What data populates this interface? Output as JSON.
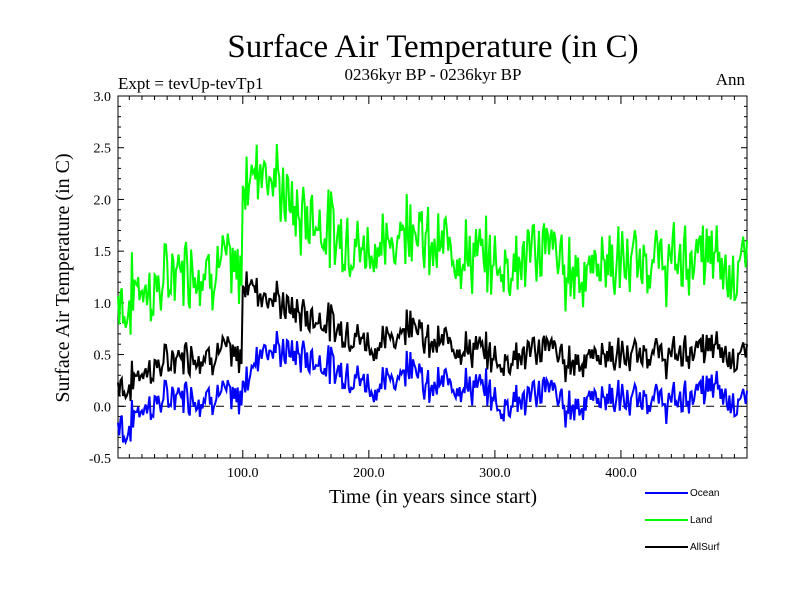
{
  "chart_data": {
    "type": "line",
    "title": "Surface Air Temperature (in C)",
    "subtitle": "0236kyr BP - 0236kyr BP",
    "expt_label": "Expt = tevUp-tevTp1",
    "season_label": "Ann",
    "xlabel": "Time (in years since start)",
    "ylabel": "Surface Air Temperature (in C)",
    "xlim": [
      1,
      500
    ],
    "ylim": [
      -0.5,
      3.0
    ],
    "x_ticks": [
      100,
      200,
      300,
      400
    ],
    "x_tick_labels": [
      "100.0",
      "200.0",
      "300.0",
      "400.0"
    ],
    "y_ticks": [
      -0.5,
      0.0,
      0.5,
      1.0,
      1.5,
      2.0,
      2.5,
      3.0
    ],
    "y_tick_labels": [
      "-0.5",
      "0.0",
      "0.5",
      "1.0",
      "1.5",
      "2.0",
      "2.5",
      "3.0"
    ],
    "zero_line": 0.0,
    "x_step": 10,
    "series": [
      {
        "name": "Ocean",
        "color": "#0000ff",
        "values": [
          -0.35,
          -0.05,
          0.0,
          0.05,
          0.1,
          0.12,
          0.08,
          0.1,
          0.12,
          0.05,
          0.28,
          0.6,
          0.55,
          0.52,
          0.5,
          0.45,
          0.43,
          0.35,
          0.3,
          0.25,
          0.15,
          0.25,
          0.3,
          0.5,
          0.15,
          0.2,
          0.25,
          0.2,
          0.18,
          0.15,
          -0.05,
          0.1,
          0.05,
          0.15,
          0.2,
          -0.02,
          0.02,
          0.05,
          0.1,
          0.08,
          0.05,
          0.05,
          0.1,
          0.02,
          0.05,
          0.12,
          0.15,
          0.2,
          0.08,
          0.05
        ]
      },
      {
        "name": "Land",
        "color": "#00ff00",
        "values": [
          0.8,
          1.2,
          1.1,
          1.15,
          1.3,
          1.35,
          1.35,
          1.3,
          1.4,
          1.25,
          2.2,
          2.4,
          2.2,
          2.0,
          1.8,
          1.85,
          1.75,
          1.65,
          1.6,
          1.5,
          1.55,
          1.5,
          1.7,
          1.85,
          1.55,
          1.5,
          1.6,
          1.45,
          1.45,
          1.4,
          1.35,
          1.4,
          1.45,
          1.5,
          1.6,
          1.3,
          1.35,
          1.25,
          1.45,
          1.35,
          1.4,
          1.35,
          1.45,
          1.35,
          1.4,
          1.45,
          1.45,
          1.45,
          1.3,
          1.4
        ]
      },
      {
        "name": "AllSurf",
        "color": "#000000",
        "values": [
          0.1,
          0.3,
          0.35,
          0.4,
          0.45,
          0.5,
          0.5,
          0.48,
          0.55,
          0.45,
          1.2,
          1.1,
          1.05,
          0.95,
          0.9,
          0.85,
          0.85,
          0.75,
          0.7,
          0.65,
          0.55,
          0.65,
          0.7,
          0.9,
          0.6,
          0.6,
          0.65,
          0.55,
          0.55,
          0.5,
          0.4,
          0.5,
          0.5,
          0.55,
          0.6,
          0.42,
          0.45,
          0.45,
          0.52,
          0.48,
          0.48,
          0.48,
          0.55,
          0.45,
          0.5,
          0.55,
          0.55,
          0.58,
          0.5,
          0.5
        ]
      }
    ],
    "legend_position": "bottom-right"
  }
}
